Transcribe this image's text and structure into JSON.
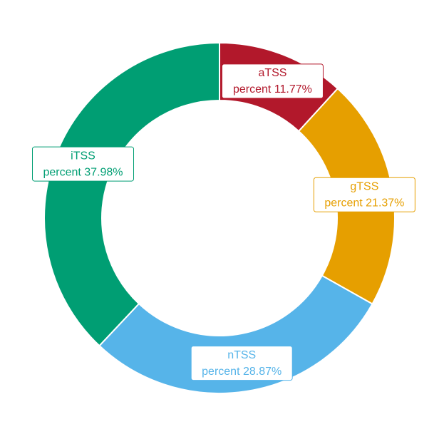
{
  "chart_data": {
    "type": "pie",
    "variant": "donut",
    "start_angle_deg": 0,
    "direction": "clockwise",
    "label_prefix": "percent",
    "slices": [
      {
        "name": "aTSS",
        "value": 11.77,
        "color": "#B2182B",
        "label_text": "percent 11.77%"
      },
      {
        "name": "gTSS",
        "value": 21.37,
        "color": "#E69F00",
        "label_text": "percent 21.37%"
      },
      {
        "name": "nTSS",
        "value": 28.87,
        "color": "#56B4E9",
        "label_text": "percent 28.87%"
      },
      {
        "name": "iTSS",
        "value": 37.98,
        "color": "#009E73",
        "label_text": "percent 37.98%"
      }
    ],
    "legend": "none",
    "grid": false
  }
}
